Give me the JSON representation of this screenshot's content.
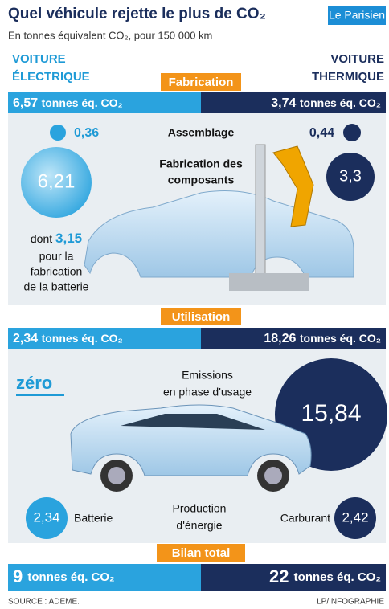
{
  "header": {
    "title": "Quel véhicule rejette le plus de CO₂",
    "subtitle": "En tonnes équivalent CO₂, pour 150 000 km",
    "logo": "Le Parisien"
  },
  "columns": {
    "left": [
      "VOITURE",
      "ÉLECTRIQUE"
    ],
    "right": [
      "VOITURE",
      "THERMIQUE"
    ]
  },
  "fabrication": {
    "label": "Fabrication",
    "left_total": {
      "value": "6,57",
      "unit": "tonnes éq. CO₂"
    },
    "right_total": {
      "value": "3,74",
      "unit": "tonnes éq. CO₂"
    },
    "assemblage": {
      "label": "Assemblage",
      "left": "0,36",
      "right": "0,44"
    },
    "composants": {
      "label": [
        "Fabrication des",
        "composants"
      ],
      "left": "6,21",
      "right": "3,3"
    },
    "batterie": {
      "prefix": "dont",
      "value": "3,15",
      "text": [
        "pour la",
        "fabrication",
        "de la batterie"
      ]
    }
  },
  "utilisation": {
    "label": "Utilisation",
    "left_total": {
      "value": "2,34",
      "unit": "tonnes éq. CO₂"
    },
    "right_total": {
      "value": "18,26",
      "unit": "tonnes éq. CO₂"
    },
    "emissions": {
      "label": [
        "Emissions",
        "en phase d'usage"
      ],
      "left": "zéro",
      "right": "15,84"
    },
    "production": {
      "label": [
        "Production",
        "d'énergie"
      ],
      "left": "2,34",
      "left_label": "Batterie",
      "right_label": "Carburant",
      "right": "2,42"
    }
  },
  "bilan": {
    "label": "Bilan total",
    "left_total": {
      "value": "9",
      "unit": "tonnes éq. CO₂"
    },
    "right_total": {
      "value": "22",
      "unit": "tonnes éq. CO₂"
    }
  },
  "footer": {
    "source": "SOURCE : ADEME.",
    "credit": "LP/INFOGRAPHIE"
  }
}
